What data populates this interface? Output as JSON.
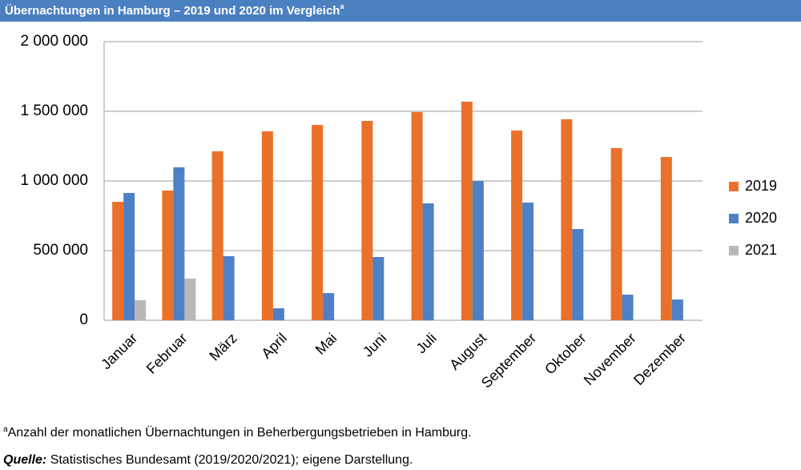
{
  "chart_data": {
    "type": "bar",
    "title": "Übernachtungen in Hamburg – 2019 und 2020 im Vergleich",
    "title_marker": "a",
    "categories": [
      "Januar",
      "Februar",
      "März",
      "April",
      "Mai",
      "Juni",
      "Juli",
      "August",
      "September",
      "Oktober",
      "November",
      "Dezember"
    ],
    "series": [
      {
        "name": "2019",
        "color": "#ea7129",
        "values": [
          850000,
          931000,
          1213000,
          1356000,
          1402000,
          1431000,
          1494000,
          1569000,
          1362000,
          1443000,
          1236000,
          1172000
        ]
      },
      {
        "name": "2020",
        "color": "#4e80c6",
        "values": [
          914000,
          1098000,
          460000,
          86000,
          195000,
          454000,
          839000,
          1000000,
          845000,
          655000,
          184000,
          149000
        ]
      },
      {
        "name": "2021",
        "color": "#b8b8b8",
        "values": [
          144000,
          299000,
          null,
          null,
          null,
          null,
          null,
          null,
          null,
          null,
          null,
          null
        ]
      }
    ],
    "ylim": [
      0,
      2000000
    ],
    "yticks": [
      0,
      {
        "value": 500000,
        "label": "500 000"
      },
      {
        "value": 1000000,
        "label": "1 000 000"
      },
      {
        "value": 1500000,
        "label": "1 500 000"
      },
      {
        "value": 2000000,
        "label": "2 000 000"
      }
    ],
    "grid": true,
    "legend": "right",
    "footnote": {
      "marker": "a",
      "text": "Anzahl der monatlichen Übernachtungen in Beherbergungsbetrieben in Hamburg."
    },
    "source": {
      "label": "Quelle:",
      "text": "Statistisches Bundesamt (2019/2020/2021); eigene Darstellung."
    }
  }
}
